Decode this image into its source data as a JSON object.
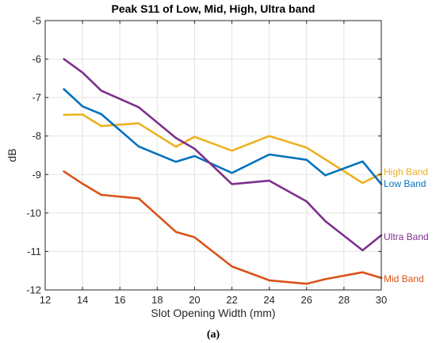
{
  "chart_data": {
    "type": "line",
    "title": "Peak S11 of Low, Mid, High, Ultra band",
    "xlabel": "Slot Opening Width (mm)",
    "ylabel": "dB",
    "xlim": [
      12,
      30
    ],
    "ylim": [
      -12,
      -5
    ],
    "xticks": [
      12,
      14,
      16,
      18,
      20,
      22,
      24,
      26,
      28,
      30
    ],
    "yticks": [
      -12,
      -11,
      -10,
      -9,
      -8,
      -7,
      -6,
      -5
    ],
    "grid": true,
    "legend": "labels at right end of each line",
    "series": [
      {
        "name": "High Band",
        "color": "#EDB120",
        "x": [
          13,
          14,
          15,
          17,
          19,
          20,
          22,
          24,
          26,
          29,
          30
        ],
        "y": [
          -7.45,
          -7.44,
          -7.74,
          -7.67,
          -8.28,
          -8.02,
          -8.38,
          -8.0,
          -8.3,
          -9.22,
          -8.98
        ]
      },
      {
        "name": "Low Band",
        "color": "#0072BD",
        "x": [
          13,
          14,
          15,
          17,
          19,
          20,
          22,
          24,
          26,
          27,
          29,
          30
        ],
        "y": [
          -6.78,
          -7.23,
          -7.43,
          -8.27,
          -8.67,
          -8.52,
          -8.96,
          -8.48,
          -8.62,
          -9.02,
          -8.66,
          -9.25
        ]
      },
      {
        "name": "Ultra Band",
        "color": "#7E2F8E",
        "x": [
          13,
          14,
          15,
          17,
          19,
          20,
          22,
          24,
          26,
          27,
          29,
          30
        ],
        "y": [
          -6.0,
          -6.35,
          -6.82,
          -7.25,
          -8.05,
          -8.33,
          -9.25,
          -9.16,
          -9.7,
          -10.21,
          -10.97,
          -10.58
        ]
      },
      {
        "name": "Mid Band",
        "color": "#D95319",
        "x": [
          13,
          14,
          15,
          17,
          19,
          20,
          22,
          24,
          26,
          27,
          29,
          30
        ],
        "y": [
          -8.92,
          -9.24,
          -9.53,
          -9.62,
          -10.49,
          -10.63,
          -11.39,
          -11.75,
          -11.84,
          -11.72,
          -11.54,
          -11.69
        ]
      }
    ]
  },
  "caption": "(a)"
}
